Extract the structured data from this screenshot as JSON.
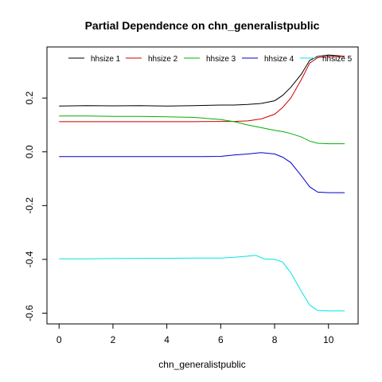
{
  "chart_data": {
    "type": "line",
    "title": "Partial Dependence on chn_generalistpublic",
    "xlabel": "chn_generalistpublic",
    "ylabel": "",
    "xlim": [
      -0.45,
      11.1
    ],
    "ylim": [
      -0.64,
      0.39
    ],
    "xticks": [
      0,
      2,
      4,
      6,
      8,
      10
    ],
    "yticks": [
      -0.6,
      -0.4,
      -0.2,
      0.0,
      0.2
    ],
    "ytick_labels": [
      "-0.6",
      "-0.4",
      "-0.2",
      "0.0",
      "0.2"
    ],
    "legend_position": "top",
    "series": [
      {
        "name": "hhsize 1",
        "color": "#000000",
        "x": [
          0,
          1,
          2,
          3,
          4,
          5,
          6,
          6.5,
          7,
          7.5,
          8,
          8.3,
          8.6,
          9,
          9.3,
          9.6,
          10,
          10.6
        ],
        "y": [
          0.17,
          0.172,
          0.171,
          0.172,
          0.17,
          0.172,
          0.174,
          0.174,
          0.176,
          0.18,
          0.19,
          0.21,
          0.24,
          0.29,
          0.34,
          0.355,
          0.36,
          0.355
        ]
      },
      {
        "name": "hhsize 2",
        "color": "#cc0000",
        "x": [
          0,
          1,
          2,
          3,
          4,
          5,
          6,
          6.5,
          7,
          7.5,
          8,
          8.3,
          8.6,
          9,
          9.3,
          9.6,
          10,
          10.6
        ],
        "y": [
          0.112,
          0.112,
          0.112,
          0.112,
          0.112,
          0.112,
          0.113,
          0.113,
          0.115,
          0.122,
          0.14,
          0.165,
          0.2,
          0.27,
          0.33,
          0.35,
          0.355,
          0.355
        ]
      },
      {
        "name": "hhsize 3",
        "color": "#00b000",
        "x": [
          0,
          1,
          2,
          3,
          4,
          5,
          6,
          6.5,
          7,
          7.5,
          8,
          8.3,
          8.6,
          9,
          9.3,
          9.6,
          10,
          10.6
        ],
        "y": [
          0.133,
          0.133,
          0.132,
          0.132,
          0.13,
          0.128,
          0.12,
          0.112,
          0.1,
          0.09,
          0.08,
          0.075,
          0.068,
          0.055,
          0.04,
          0.032,
          0.03,
          0.03
        ]
      },
      {
        "name": "hhsize 4",
        "color": "#0000cc",
        "x": [
          0,
          1,
          2,
          3,
          4,
          5,
          6,
          6.5,
          7,
          7.5,
          8,
          8.3,
          8.6,
          9,
          9.3,
          9.6,
          10,
          10.6
        ],
        "y": [
          -0.018,
          -0.018,
          -0.018,
          -0.018,
          -0.018,
          -0.018,
          -0.017,
          -0.012,
          -0.008,
          -0.003,
          -0.008,
          -0.02,
          -0.04,
          -0.09,
          -0.13,
          -0.15,
          -0.152,
          -0.152
        ]
      },
      {
        "name": "hhsize 5",
        "color": "#00e5e5",
        "x": [
          0,
          1,
          2,
          3,
          4,
          5,
          6,
          6.5,
          7,
          7.3,
          7.6,
          8,
          8.3,
          8.6,
          9,
          9.3,
          9.6,
          10,
          10.6
        ],
        "y": [
          -0.398,
          -0.398,
          -0.397,
          -0.396,
          -0.396,
          -0.395,
          -0.395,
          -0.392,
          -0.388,
          -0.385,
          -0.398,
          -0.4,
          -0.41,
          -0.45,
          -0.52,
          -0.57,
          -0.59,
          -0.592,
          -0.592
        ]
      }
    ]
  }
}
